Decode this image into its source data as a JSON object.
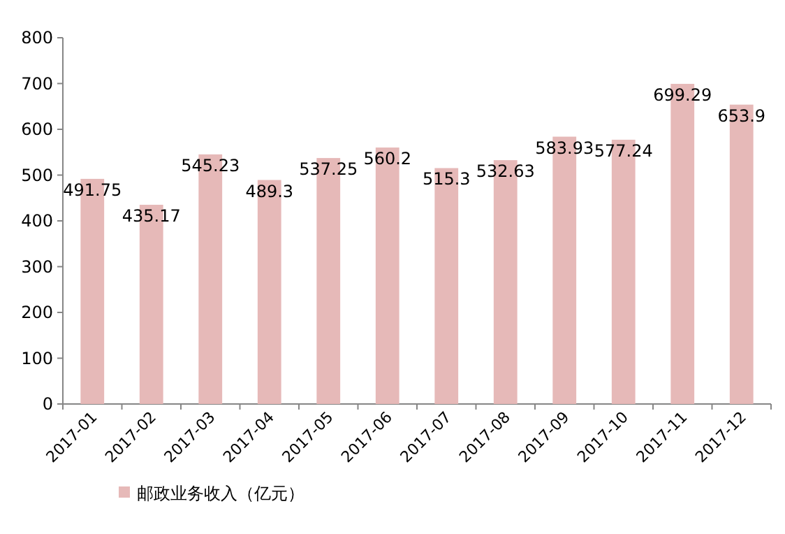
{
  "chart_data": {
    "type": "bar",
    "categories": [
      "2017-01",
      "2017-02",
      "2017-03",
      "2017-04",
      "2017-05",
      "2017-06",
      "2017-07",
      "2017-08",
      "2017-09",
      "2017-10",
      "2017-11",
      "2017-12"
    ],
    "series": [
      {
        "name": "邮政业务收入（亿元）",
        "color": "#e6b9b8",
        "values": [
          491.75,
          435.17,
          545.23,
          489.3,
          537.25,
          560.2,
          515.3,
          532.63,
          583.93,
          577.24,
          699.29,
          653.9
        ]
      }
    ],
    "ylim": [
      0,
      800
    ],
    "yticks": [
      0,
      100,
      200,
      300,
      400,
      500,
      600,
      700,
      800
    ],
    "data_labels": true,
    "legend": "bottom"
  }
}
